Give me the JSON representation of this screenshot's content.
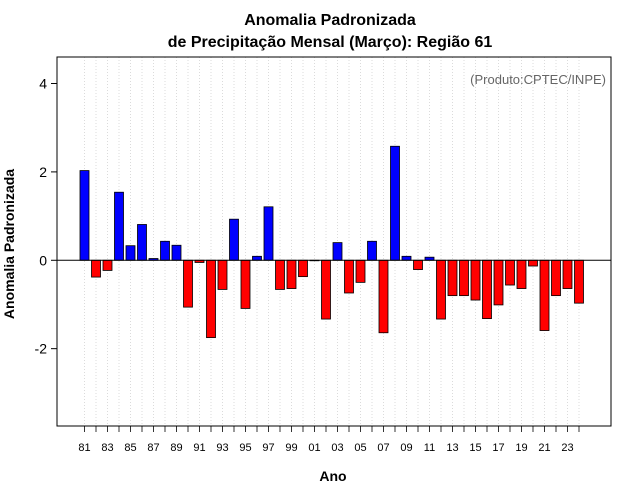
{
  "chart_data": {
    "type": "bar",
    "title": [
      "Anomalia Padronizada",
      "de Precipitação Mensal (Março): Região 61"
    ],
    "xlabel": "Ano",
    "ylabel": "Anomalia Padronizada",
    "annotation": "(Produto:CPTEC/INPE)",
    "ylim": [
      -3.75,
      4.6
    ],
    "yticks": [
      -2,
      0,
      2,
      4
    ],
    "yticklabels": [
      "-2",
      "0",
      "2",
      "4"
    ],
    "categories": [
      "81",
      "82",
      "83",
      "84",
      "85",
      "86",
      "87",
      "88",
      "89",
      "90",
      "91",
      "92",
      "93",
      "94",
      "95",
      "96",
      "97",
      "98",
      "99",
      "00",
      "01",
      "02",
      "03",
      "04",
      "05",
      "06",
      "07",
      "08",
      "09",
      "10",
      "11",
      "12",
      "13",
      "14",
      "15",
      "16",
      "17",
      "18",
      "19",
      "20",
      "21",
      "22",
      "23",
      "24"
    ],
    "xticklabels": [
      "81",
      "83",
      "85",
      "87",
      "89",
      "91",
      "93",
      "95",
      "97",
      "99",
      "01",
      "03",
      "05",
      "07",
      "09",
      "11",
      "13",
      "15",
      "17",
      "19",
      "21",
      "23"
    ],
    "values": [
      2.03,
      -0.38,
      -0.23,
      1.54,
      0.33,
      0.81,
      0.04,
      0.43,
      0.34,
      -1.06,
      -0.05,
      -1.75,
      -0.66,
      0.93,
      -1.09,
      0.09,
      1.21,
      -0.66,
      -0.64,
      -0.37,
      0.0,
      -1.33,
      0.4,
      -0.74,
      -0.5,
      0.43,
      -1.64,
      2.58,
      0.09,
      -0.21,
      0.07,
      -1.33,
      -0.8,
      -0.8,
      -0.9,
      -1.32,
      -1.01,
      -0.56,
      -0.64,
      -0.13,
      -1.59,
      -0.8,
      -0.64,
      -0.97
    ],
    "colors": {
      "positive": "#0000ff",
      "negative": "#ff0000",
      "grid": "#d3d3d3",
      "zero_line": "#000000"
    },
    "grid": true
  }
}
